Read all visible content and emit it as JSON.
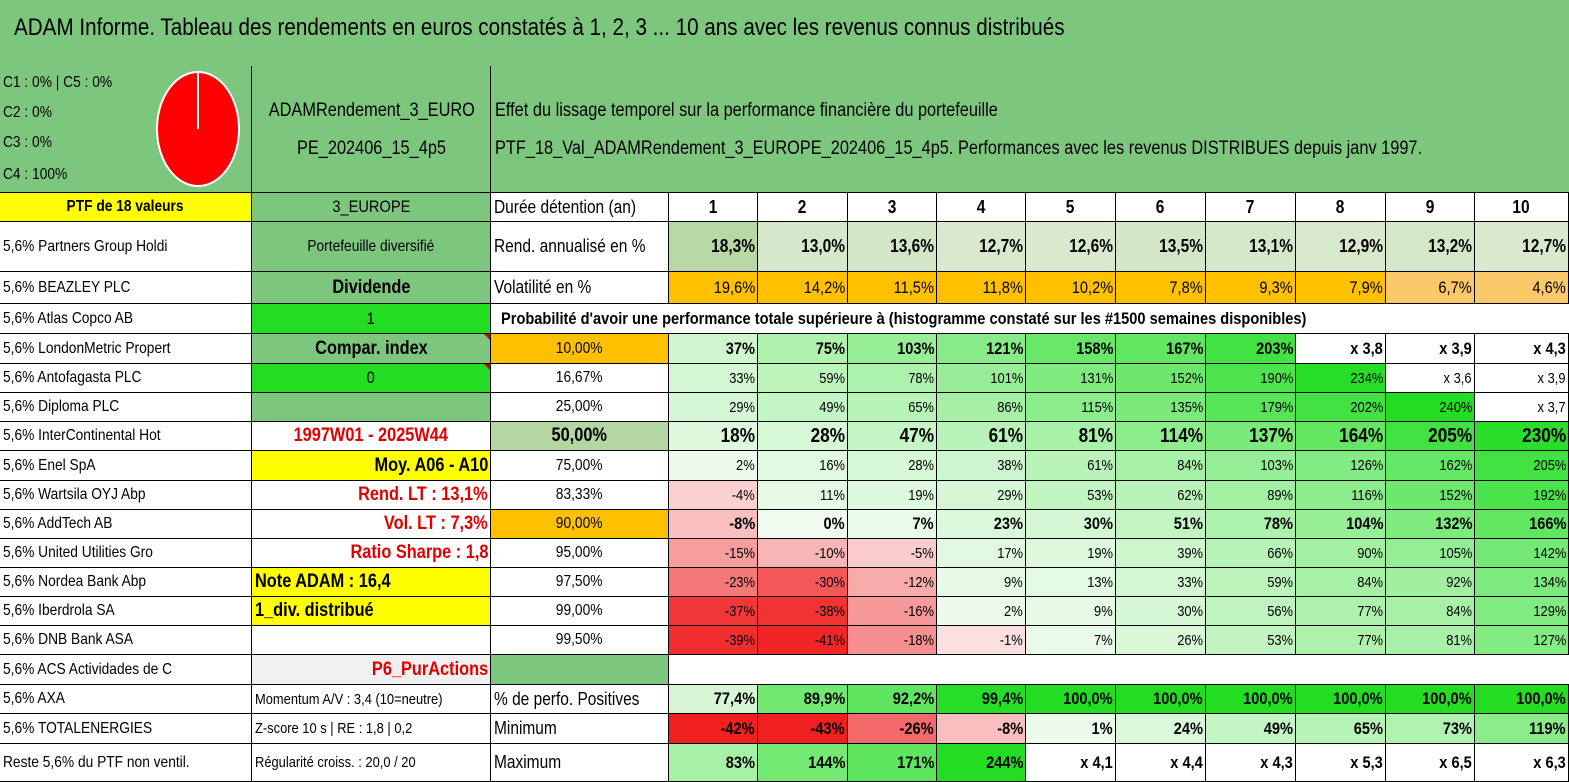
{
  "title": "ADAM Informe. Tableau des rendements en euros constatés à 1, 2, 3 ... 10 ans avec les revenus connus distribués",
  "allocation": {
    "lines": [
      "C1 : 0% | C5 : 0%",
      "C2 : 0%",
      "C3 : 0%",
      "C4 : 100%"
    ],
    "pie": [
      {
        "label": "C4",
        "value": 100,
        "color": "#ff0000"
      }
    ]
  },
  "portfolio_name": [
    "ADAMRendement_3_EURO",
    "PE_202406_15_4p5"
  ],
  "description": [
    "Effet du lissage temporel sur la performance financière du portefeuille",
    "PTF_18_Val_ADAMRendement_3_EUROPE_202406_15_4p5. Performances avec les revenus DISTRIBUES depuis janv 1997."
  ],
  "holdings_header": "PTF de 18 valeurs",
  "holdings": [
    "5,6% Partners Group Holdi",
    "5,6% BEAZLEY PLC",
    "5,6% Atlas Copco AB",
    "5,6% LondonMetric Propert",
    "5,6% Antofagasta PLC",
    "5,6% Diploma PLC",
    "5,6% InterContinental Hot",
    "5,6% Enel SpA",
    "5,6% Wartsila OYJ Abp",
    "5,6% AddTech AB",
    "5,6% United Utilities Gro",
    "5,6% Nordea Bank Abp",
    "5,6% Iberdrola SA",
    "5,6% DNB Bank ASA",
    "5,6% ACS Actividades de C",
    "5,6% AXA",
    "5,6% TOTALENERGIES",
    "Reste 5,6% du PTF non ventil."
  ],
  "info": [
    "3_EUROPE",
    "Portefeuille diversifié",
    "Dividende",
    "1",
    "Compar. index",
    "0",
    "",
    "1997W01 - 2025W44",
    "Moy. A06 - A10",
    "Rend. LT : 13,1%",
    "Vol. LT : 7,3%",
    "Ratio Sharpe : 1,8",
    "Note ADAM : 16,4",
    "1_div. distribué",
    "",
    "P6_PurActions",
    "Momentum A/V : 3,4 (10=neutre)",
    "Z-score 10 s | RE : 1,8 | 0,2",
    "Régularité croiss. : 20,0 / 20"
  ],
  "metrics": {
    "duration_label": "Durée détention (an)",
    "years": [
      "1",
      "2",
      "3",
      "4",
      "5",
      "6",
      "7",
      "8",
      "9",
      "10"
    ],
    "rend_label": "Rend. annualisé en %",
    "rend": [
      "18,3%",
      "13,0%",
      "13,6%",
      "12,7%",
      "12,6%",
      "13,5%",
      "13,1%",
      "12,9%",
      "13,2%",
      "12,7%"
    ],
    "vol_label": "Volatilité en %",
    "vol": [
      "19,6%",
      "14,2%",
      "11,5%",
      "11,8%",
      "10,2%",
      "7,8%",
      "9,3%",
      "7,9%",
      "6,7%",
      "4,6%"
    ]
  },
  "probability_title": "Probabilité d'avoir une performance totale supérieure à (histogramme constaté sur les #1500 semaines disponibles)",
  "probabilities": [
    {
      "p": "10,00%",
      "v": [
        "37%",
        "75%",
        "103%",
        "121%",
        "158%",
        "167%",
        "203%",
        "x 3,8",
        "x 3,9",
        "x 4,3"
      ]
    },
    {
      "p": "16,67%",
      "v": [
        "33%",
        "59%",
        "78%",
        "101%",
        "131%",
        "152%",
        "190%",
        "234%",
        "x 3,6",
        "x 3,9"
      ]
    },
    {
      "p": "25,00%",
      "v": [
        "29%",
        "49%",
        "65%",
        "86%",
        "115%",
        "135%",
        "179%",
        "202%",
        "240%",
        "x 3,7"
      ]
    },
    {
      "p": "50,00%",
      "v": [
        "18%",
        "28%",
        "47%",
        "61%",
        "81%",
        "114%",
        "137%",
        "164%",
        "205%",
        "230%"
      ]
    },
    {
      "p": "75,00%",
      "v": [
        "2%",
        "16%",
        "28%",
        "38%",
        "61%",
        "84%",
        "103%",
        "126%",
        "162%",
        "205%"
      ]
    },
    {
      "p": "83,33%",
      "v": [
        "-4%",
        "11%",
        "19%",
        "29%",
        "53%",
        "62%",
        "89%",
        "116%",
        "152%",
        "192%"
      ]
    },
    {
      "p": "90,00%",
      "v": [
        "-8%",
        "0%",
        "7%",
        "23%",
        "30%",
        "51%",
        "78%",
        "104%",
        "132%",
        "166%"
      ]
    },
    {
      "p": "95,00%",
      "v": [
        "-15%",
        "-10%",
        "-5%",
        "17%",
        "19%",
        "39%",
        "66%",
        "90%",
        "105%",
        "142%"
      ]
    },
    {
      "p": "97,50%",
      "v": [
        "-23%",
        "-30%",
        "-12%",
        "9%",
        "13%",
        "33%",
        "59%",
        "84%",
        "92%",
        "134%"
      ]
    },
    {
      "p": "99,00%",
      "v": [
        "-37%",
        "-38%",
        "-16%",
        "2%",
        "9%",
        "30%",
        "56%",
        "77%",
        "84%",
        "129%"
      ]
    },
    {
      "p": "99,50%",
      "v": [
        "-39%",
        "-41%",
        "-18%",
        "-1%",
        "7%",
        "26%",
        "53%",
        "77%",
        "81%",
        "127%"
      ]
    }
  ],
  "bottom": [
    {
      "label": "% de perfo. Positives",
      "v": [
        "77,4%",
        "89,9%",
        "92,2%",
        "99,4%",
        "100,0%",
        "100,0%",
        "100,0%",
        "100,0%",
        "100,0%",
        "100,0%"
      ]
    },
    {
      "label": "Minimum",
      "v": [
        "-42%",
        "-43%",
        "-26%",
        "-8%",
        "1%",
        "24%",
        "49%",
        "65%",
        "73%",
        "119%"
      ]
    },
    {
      "label": "Maximum",
      "v": [
        "83%",
        "144%",
        "171%",
        "244%",
        "x 4,1",
        "x 4,4",
        "x 4,3",
        "x 5,3",
        "x 6,5",
        "x 6,3"
      ]
    }
  ],
  "colors": {
    "header_green": "#7dc67d",
    "yellow": "#ffff00",
    "bright_green": "#22dd22",
    "orange": "#ffc000",
    "red_text": "#e00000",
    "rend_fill": "#c6e0b4",
    "light_gray": "#f0f0f0"
  }
}
